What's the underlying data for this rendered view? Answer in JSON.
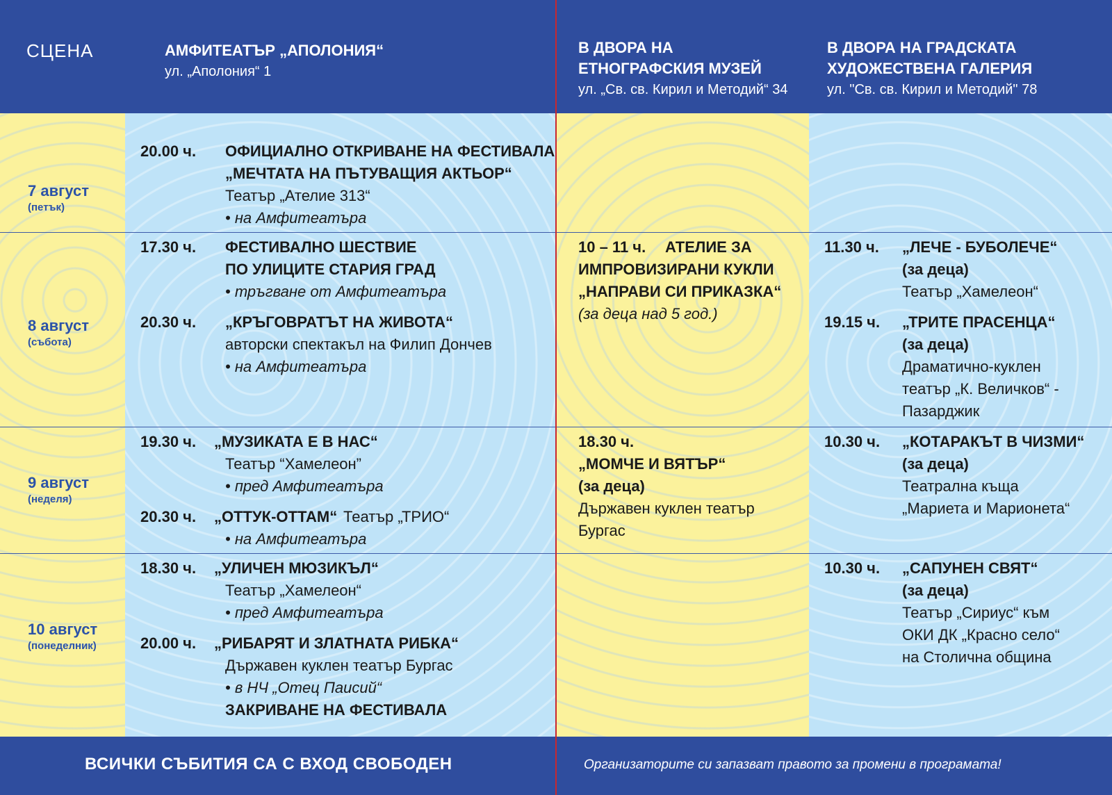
{
  "header": {
    "scena": "СЦЕНА",
    "venues": [
      {
        "title_lines": [
          "АМФИТЕАТЪР „АПОЛОНИЯ“"
        ],
        "address": "ул. „Аполония“ 1"
      },
      {
        "title_lines": [
          "В ДВОРА НА",
          "ЕТНОГРАФСКИЯ МУЗЕЙ"
        ],
        "address": "ул. „Св. св. Кирил и Методий“  34"
      },
      {
        "title_lines": [
          "В ДВОРА НА ГРАДСКАТА",
          "ХУДОЖЕСТВЕНА ГАЛЕРИЯ"
        ],
        "address": "ул. \"Св. св. Кирил и Методий\" 78"
      }
    ]
  },
  "days": [
    {
      "name": "7 август",
      "weekday": "(петък)"
    },
    {
      "name": "8 август",
      "weekday": "(събота)"
    },
    {
      "name": "9 август",
      "weekday": "(неделя)"
    },
    {
      "name": "10 август",
      "weekday": "(понеделник)"
    }
  ],
  "events": {
    "d1_amph": {
      "time": "20.00 ч.",
      "lines": [
        "ОФИЦИАЛНО ОТКРИВАНЕ НА ФЕСТИВАЛА",
        "„МЕЧТАТА НА ПЪТУВАЩИЯ АКТЬОР“",
        "Театър „Ателие 313“",
        "• на Амфитеатъра"
      ]
    },
    "d2_amph_1": {
      "time": "17.30 ч.",
      "lines": [
        "ФЕСТИВАЛНО ШЕСТВИЕ",
        "ПО УЛИЦИТЕ СТАРИЯ ГРАД",
        "• тръгване от  Амфитеатъра"
      ]
    },
    "d2_amph_2": {
      "time": "20.30 ч.",
      "lines": [
        " „КРЪГОВРАТЪТ НА ЖИВОТА“",
        "авторски спектакъл на Филип Дончев",
        "• на  Амфитеатъра"
      ]
    },
    "d2_museum": {
      "time": "10 – 11 ч.",
      "title_first": "АТЕЛИЕ ЗА",
      "lines": [
        "ИМПРОВИЗИРАНИ КУКЛИ",
        "„НАПРАВИ СИ ПРИКАЗКА“",
        "(за деца над 5 год.)"
      ]
    },
    "d2_gallery_1": {
      "time": "11.30 ч.",
      "lines": [
        "„ЛЕЧЕ - БУБОЛЕЧЕ“",
        "(за деца)",
        "Театър „Хамелеон“"
      ]
    },
    "d2_gallery_2": {
      "time": "19.15 ч.",
      "lines": [
        "„ТРИТЕ ПРАСЕНЦА“",
        "(за деца)",
        "Драматично-куклен",
        "театър „К. Величков“ -",
        "Пазарджик"
      ]
    },
    "d3_amph_1": {
      "time": "19.30 ч.",
      "title_first": "„МУЗИКАТА Е В НАС“",
      "lines": [
        "Театър “Хамелеон”",
        "• пред Амфитеатъра"
      ]
    },
    "d3_amph_2": {
      "time": "20.30 ч.",
      "title_first": "„ОТТУК-ОТТАМ“",
      "title_extra": "Театър „ТРИО“",
      "lines": [
        "• на Амфитеатъра"
      ]
    },
    "d3_museum": {
      "time": "18.30 ч.",
      "lines": [
        "„МОМЧЕ И ВЯТЪР“",
        "(за деца)",
        "Държавен куклен театър",
        "Бургас"
      ]
    },
    "d3_gallery": {
      "time": "10.30 ч.",
      "lines": [
        "„КОТАРАКЪТ В ЧИЗМИ“",
        "(за деца)",
        "Театрална къща",
        "„Мариета и Марионета“"
      ]
    },
    "d4_amph_1": {
      "time": "18.30 ч.",
      "title_first": "„УЛИЧЕН МЮЗИКЪЛ“",
      "lines": [
        "Театър „Хамелеон“",
        "• пред Амфитеатъра"
      ]
    },
    "d4_amph_2": {
      "time": "20.00 ч.",
      "title_first": "„РИБАРЯТ И ЗЛАТНАТА РИБКА“",
      "lines": [
        "Държавен куклен театър Бургас",
        "• в НЧ „Отец Паисий“",
        "ЗАКРИВАНЕ НА ФЕСТИВАЛА"
      ]
    },
    "d4_gallery": {
      "time": "10.30 ч.",
      "lines": [
        "„САПУНЕН СВЯТ“",
        "(за деца)",
        "Театър „Сириус“ към",
        "ОКИ ДК „Красно село“",
        "на Столична община"
      ]
    }
  },
  "footer": {
    "left": "ВСИЧКИ СЪБИТИЯ СА С ВХОД СВОБОДЕН",
    "right": "Организаторите си запазват правото за промени в програмата!"
  },
  "colors": {
    "header_blue": "#2f4d9e",
    "cell_yellow": "#fbf29c",
    "cell_blue": "#bfe3f8",
    "day_text": "#2c53a8",
    "divider_red": "#c8272e"
  }
}
